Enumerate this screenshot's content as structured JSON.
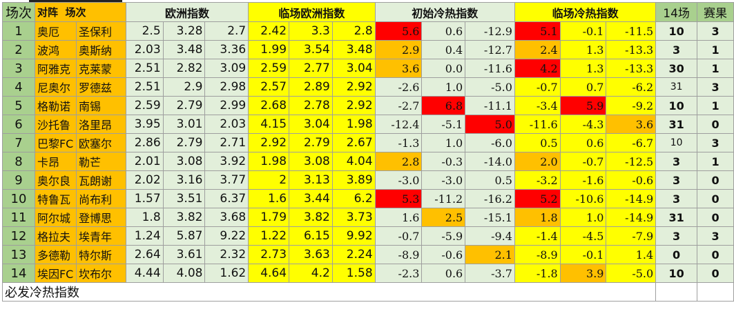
{
  "colors": {
    "green": "#a9d08e",
    "light_green": "#e2efda",
    "orange": "#ffc000",
    "yellow": "#ffff00",
    "red": "#ff0000"
  },
  "headers": {
    "order": "场次",
    "match_a": "对阵",
    "match_b": "场次",
    "euro": "欧洲指数",
    "live_euro": "临场欧洲指数",
    "init_heat": "初始冷热指数",
    "live_heat": "临场冷热指数",
    "ht": "14场",
    "result": "赛果"
  },
  "rows": [
    {
      "order": "1",
      "home": "奥厄",
      "away": "圣保利",
      "euro": [
        "2.5",
        "3.28",
        "2.7"
      ],
      "live": [
        "2.42",
        "3.3",
        "2.8"
      ],
      "init": [
        "5.6",
        "0.6",
        "-12.9"
      ],
      "init_fill": [
        "red",
        "light_green",
        "light_green"
      ],
      "lheat": [
        "5.1",
        "-0.1",
        "-11.5"
      ],
      "lheat_fill": [
        "red",
        "yellow",
        "yellow"
      ],
      "ht": "10",
      "ht_plain": false,
      "res": "3"
    },
    {
      "order": "2",
      "home": "波鸿",
      "away": "奥斯纳",
      "euro": [
        "2.03",
        "3.48",
        "3.36"
      ],
      "live": [
        "1.99",
        "3.54",
        "3.48"
      ],
      "init": [
        "2.9",
        "0.4",
        "-12.7"
      ],
      "init_fill": [
        "orange",
        "light_green",
        "light_green"
      ],
      "lheat": [
        "2.4",
        "1.3",
        "-13.3"
      ],
      "lheat_fill": [
        "orange",
        "yellow",
        "yellow"
      ],
      "ht": "3",
      "ht_plain": false,
      "res": "1"
    },
    {
      "order": "3",
      "home": "阿雅克",
      "away": "克莱蒙",
      "euro": [
        "2.51",
        "2.82",
        "3.09"
      ],
      "live": [
        "2.59",
        "2.77",
        "3.04"
      ],
      "init": [
        "3.6",
        "0.0",
        "-11.6"
      ],
      "init_fill": [
        "orange",
        "light_green",
        "light_green"
      ],
      "lheat": [
        "4.2",
        "1.3",
        "-13.3"
      ],
      "lheat_fill": [
        "red",
        "yellow",
        "yellow"
      ],
      "ht": "30",
      "ht_plain": false,
      "res": "1"
    },
    {
      "order": "4",
      "home": "尼奥尔",
      "away": "罗德兹",
      "euro": [
        "2.51",
        "2.9",
        "2.98"
      ],
      "live": [
        "2.57",
        "2.89",
        "2.92"
      ],
      "init": [
        "-2.6",
        "1.0",
        "-5.0"
      ],
      "init_fill": [
        "light_green",
        "light_green",
        "light_green"
      ],
      "lheat": [
        "-0.7",
        "0.7",
        "-6.2"
      ],
      "lheat_fill": [
        "yellow",
        "yellow",
        "yellow"
      ],
      "ht": "31",
      "ht_plain": true,
      "res": "3"
    },
    {
      "order": "5",
      "home": "格勒诺",
      "away": "南锡",
      "euro": [
        "2.59",
        "2.79",
        "2.99"
      ],
      "live": [
        "2.68",
        "2.78",
        "2.92"
      ],
      "init": [
        "-2.7",
        "6.8",
        "-11.1"
      ],
      "init_fill": [
        "light_green",
        "red",
        "light_green"
      ],
      "lheat": [
        "-3.4",
        "5.9",
        "-9.2"
      ],
      "lheat_fill": [
        "yellow",
        "red",
        "yellow"
      ],
      "ht": "10",
      "ht_plain": false,
      "res": "1"
    },
    {
      "order": "6",
      "home": "沙托鲁",
      "away": "洛里昂",
      "euro": [
        "3.95",
        "3.01",
        "2.03"
      ],
      "live": [
        "4.15",
        "3.04",
        "1.98"
      ],
      "init": [
        "-12.4",
        "-5.1",
        "5.0"
      ],
      "init_fill": [
        "light_green",
        "light_green",
        "red"
      ],
      "lheat": [
        "-11.6",
        "-4.3",
        "3.6"
      ],
      "lheat_fill": [
        "yellow",
        "yellow",
        "orange"
      ],
      "ht": "31",
      "ht_plain": false,
      "res": "0"
    },
    {
      "order": "7",
      "home": "巴黎FC",
      "away": "欧塞尔",
      "euro": [
        "2.86",
        "2.79",
        "2.71"
      ],
      "live": [
        "2.92",
        "2.79",
        "2.67"
      ],
      "init": [
        "-1.3",
        "1.0",
        "-6.0"
      ],
      "init_fill": [
        "light_green",
        "light_green",
        "light_green"
      ],
      "lheat": [
        "0.5",
        "0.6",
        "-6.7"
      ],
      "lheat_fill": [
        "yellow",
        "yellow",
        "yellow"
      ],
      "ht": "10",
      "ht_plain": true,
      "res": "3"
    },
    {
      "order": "8",
      "home": "卡昂",
      "away": "勒芒",
      "euro": [
        "2.01",
        "3.08",
        "3.92"
      ],
      "live": [
        "1.98",
        "3.08",
        "4.04"
      ],
      "init": [
        "2.8",
        "-0.3",
        "-14.0"
      ],
      "init_fill": [
        "orange",
        "light_green",
        "light_green"
      ],
      "lheat": [
        "2.0",
        "-0.7",
        "-12.5"
      ],
      "lheat_fill": [
        "orange",
        "yellow",
        "yellow"
      ],
      "ht": "3",
      "ht_plain": false,
      "res": "1"
    },
    {
      "order": "9",
      "home": "奥尔良",
      "away": "瓦朗谢",
      "euro": [
        "2.02",
        "3.16",
        "3.77"
      ],
      "live": [
        "2",
        "3.13",
        "3.89"
      ],
      "init": [
        "-3.0",
        "-3.0",
        "0.5"
      ],
      "init_fill": [
        "light_green",
        "light_green",
        "light_green"
      ],
      "lheat": [
        "-3.2",
        "-1.6",
        "-0.6"
      ],
      "lheat_fill": [
        "yellow",
        "yellow",
        "yellow"
      ],
      "ht": "3",
      "ht_plain": false,
      "res": "0"
    },
    {
      "order": "10",
      "home": "特鲁瓦",
      "away": "尚布利",
      "euro": [
        "1.57",
        "3.51",
        "6.37"
      ],
      "live": [
        "1.6",
        "3.44",
        "6.2"
      ],
      "init": [
        "5.3",
        "-11.2",
        "-16.2"
      ],
      "init_fill": [
        "red",
        "light_green",
        "light_green"
      ],
      "lheat": [
        "5.2",
        "-10.6",
        "-14.9"
      ],
      "lheat_fill": [
        "red",
        "yellow",
        "yellow"
      ],
      "ht": "3",
      "ht_plain": false,
      "res": "0"
    },
    {
      "order": "11",
      "home": "阿尔城",
      "away": "登博思",
      "euro": [
        "1.8",
        "3.82",
        "3.68"
      ],
      "live": [
        "1.79",
        "3.82",
        "3.73"
      ],
      "init": [
        "1.6",
        "2.5",
        "-15.1"
      ],
      "init_fill": [
        "light_green",
        "orange",
        "light_green"
      ],
      "lheat": [
        "1.8",
        "1.0",
        "-14.9"
      ],
      "lheat_fill": [
        "orange",
        "yellow",
        "yellow"
      ],
      "ht": "31",
      "ht_plain": false,
      "res": "0"
    },
    {
      "order": "12",
      "home": "格拉夫",
      "away": "埃青年",
      "euro": [
        "1.24",
        "5.87",
        "9.22"
      ],
      "live": [
        "1.22",
        "6.15",
        "9.92"
      ],
      "init": [
        "-0.7",
        "-5.9",
        "-9.4"
      ],
      "init_fill": [
        "light_green",
        "light_green",
        "light_green"
      ],
      "lheat": [
        "-1.4",
        "-4.5",
        "-7.9"
      ],
      "lheat_fill": [
        "yellow",
        "yellow",
        "yellow"
      ],
      "ht": "3",
      "ht_plain": false,
      "res": "3"
    },
    {
      "order": "13",
      "home": "多德勒",
      "away": "特尔斯",
      "euro": [
        "2.64",
        "3.61",
        "2.32"
      ],
      "live": [
        "2.73",
        "3.63",
        "2.24"
      ],
      "init": [
        "-8.9",
        "-0.6",
        "2.1"
      ],
      "init_fill": [
        "light_green",
        "light_green",
        "orange"
      ],
      "lheat": [
        "-8.9",
        "-0.1",
        "1.4"
      ],
      "lheat_fill": [
        "yellow",
        "yellow",
        "yellow"
      ],
      "ht": "0",
      "ht_plain": false,
      "res": "0"
    },
    {
      "order": "14",
      "home": "埃因FC",
      "away": "坎布尔",
      "euro": [
        "4.44",
        "4.08",
        "1.62"
      ],
      "live": [
        "4.64",
        "4.2",
        "1.58"
      ],
      "init": [
        "-2.3",
        "0.6",
        "-3.7"
      ],
      "init_fill": [
        "light_green",
        "light_green",
        "light_green"
      ],
      "lheat": [
        "-1.8",
        "3.9",
        "-5.0"
      ],
      "lheat_fill": [
        "yellow",
        "orange",
        "yellow"
      ],
      "ht": "10",
      "ht_plain": false,
      "res": "0"
    }
  ],
  "footer": "必发冷热指数"
}
